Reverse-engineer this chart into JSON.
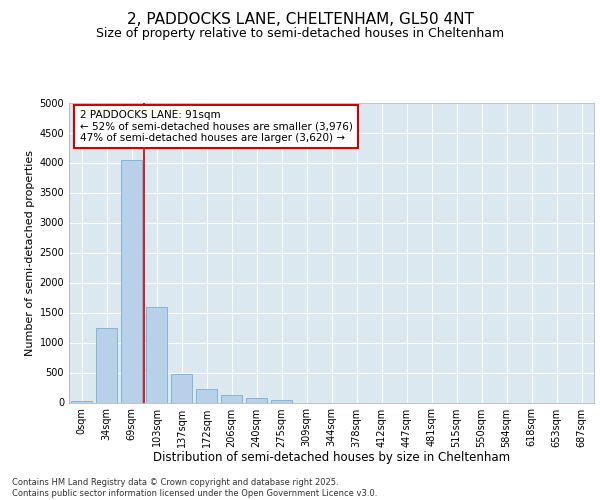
{
  "title1": "2, PADDOCKS LANE, CHELTENHAM, GL50 4NT",
  "title2": "Size of property relative to semi-detached houses in Cheltenham",
  "xlabel": "Distribution of semi-detached houses by size in Cheltenham",
  "ylabel": "Number of semi-detached properties",
  "categories": [
    "0sqm",
    "34sqm",
    "69sqm",
    "103sqm",
    "137sqm",
    "172sqm",
    "206sqm",
    "240sqm",
    "275sqm",
    "309sqm",
    "344sqm",
    "378sqm",
    "412sqm",
    "447sqm",
    "481sqm",
    "515sqm",
    "550sqm",
    "584sqm",
    "618sqm",
    "653sqm",
    "687sqm"
  ],
  "values": [
    30,
    1250,
    4050,
    1600,
    480,
    220,
    120,
    75,
    50,
    0,
    0,
    0,
    0,
    0,
    0,
    0,
    0,
    0,
    0,
    0,
    0
  ],
  "bar_color": "#b8d0e8",
  "bar_edge_color": "#7aafd4",
  "vline_x": 2.5,
  "vline_color": "#cc0000",
  "annotation_text": "2 PADDOCKS LANE: 91sqm\n← 52% of semi-detached houses are smaller (3,976)\n47% of semi-detached houses are larger (3,620) →",
  "annotation_box_facecolor": "#ffffff",
  "annotation_box_edgecolor": "#cc0000",
  "ylim": [
    0,
    5000
  ],
  "yticks": [
    0,
    500,
    1000,
    1500,
    2000,
    2500,
    3000,
    3500,
    4000,
    4500,
    5000
  ],
  "background_color": "#ffffff",
  "plot_bg_color": "#dce8f0",
  "grid_color": "#ffffff",
  "footer": "Contains HM Land Registry data © Crown copyright and database right 2025.\nContains public sector information licensed under the Open Government Licence v3.0.",
  "title1_fontsize": 11,
  "title2_fontsize": 9,
  "xlabel_fontsize": 8.5,
  "ylabel_fontsize": 8,
  "tick_fontsize": 7,
  "footer_fontsize": 6,
  "annotation_fontsize": 7.5
}
